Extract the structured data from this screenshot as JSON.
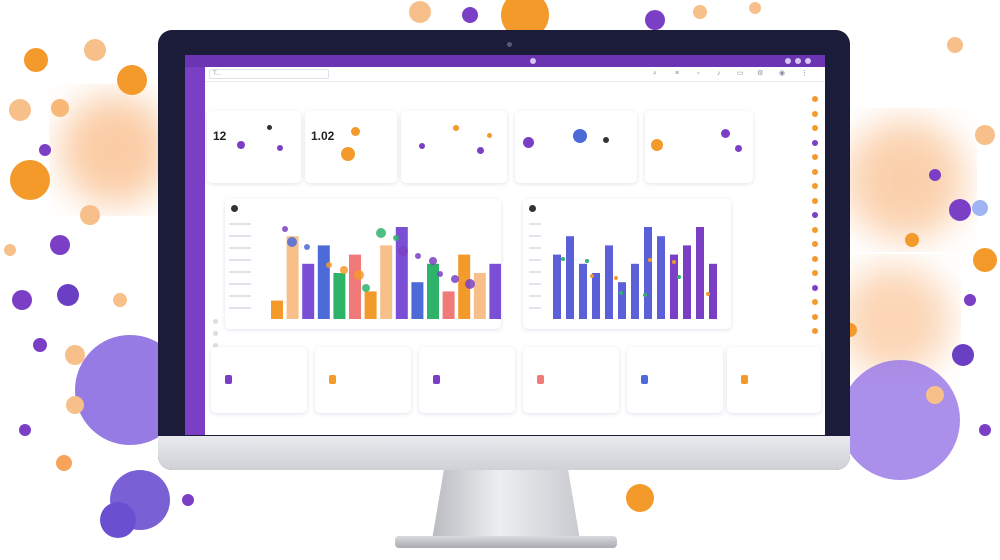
{
  "app": {
    "title": ""
  },
  "toolbar": {
    "search_placeholder": "T..."
  },
  "nav": {
    "items": [
      "",
      "",
      ""
    ]
  },
  "kpis": [
    {
      "label": "",
      "value": "12",
      "sub": ""
    },
    {
      "label": "",
      "value": "1.02",
      "sub": ""
    },
    {
      "label": "",
      "value": "",
      "sub": ""
    },
    {
      "label": "",
      "value": "",
      "sub": ""
    },
    {
      "label": "",
      "value": "",
      "sub": ""
    }
  ],
  "chart_data": [
    {
      "type": "bar",
      "title": "",
      "series": [
        {
          "values": [
            2,
            9,
            6,
            8,
            5,
            7,
            3,
            8,
            10,
            4,
            6,
            3,
            7,
            5,
            6
          ]
        }
      ],
      "colors": [
        "#f39a2b",
        "#f7c08a",
        "#7a4fd6",
        "#4c6bd8",
        "#2fb36b",
        "#f07a7a"
      ]
    },
    {
      "type": "bar",
      "title": "",
      "series": [
        {
          "values": [
            7,
            9,
            6,
            5,
            8,
            4,
            6,
            10,
            9,
            7,
            8,
            10,
            6
          ]
        }
      ],
      "colors": [
        "#5b5fd8",
        "#7a3fc4"
      ]
    }
  ],
  "stats": [
    {
      "title": "",
      "value": "",
      "sub": ""
    },
    {
      "title": "",
      "value": "",
      "sub": ""
    },
    {
      "title": "",
      "value": "",
      "sub": ""
    },
    {
      "title": "",
      "value": "",
      "sub": ""
    },
    {
      "title": "",
      "value": "",
      "sub": ""
    },
    {
      "title": "",
      "value": "",
      "sub": ""
    }
  ],
  "side_rows": [
    "",
    "",
    "",
    "",
    "",
    "",
    "",
    "",
    "",
    "",
    "",
    "",
    "",
    "",
    "",
    "",
    ""
  ],
  "colors": {
    "accent": "#7a3fc4",
    "orange": "#f39a2b",
    "bezel": "#1a1c3a"
  },
  "icons": [
    "search-icon",
    "bell-icon",
    "user-icon",
    "settings-icon"
  ]
}
